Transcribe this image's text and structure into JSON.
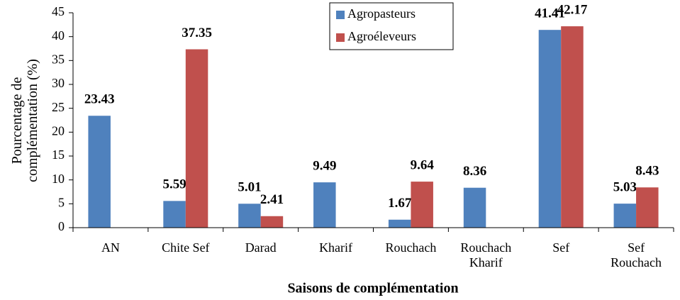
{
  "chart_data": {
    "type": "bar",
    "x_label": "Saisons de complémentation",
    "y_label": "Pourcentage de\ncomplémentation (%)",
    "categories": [
      "AN",
      "Chite Sef",
      "Darad",
      "Kharif",
      "Rouchach",
      "Rouchach\nKharif",
      "Sef",
      "Sef\nRouchach"
    ],
    "series": [
      {
        "name": "Agropasteurs",
        "color": "#4f81bd",
        "values": [
          23.43,
          5.59,
          5.01,
          9.49,
          1.67,
          8.36,
          41.41,
          5.03
        ]
      },
      {
        "name": "Agroéleveurs",
        "color": "#c0504d",
        "values": [
          null,
          37.35,
          2.41,
          null,
          9.64,
          null,
          42.17,
          8.43
        ]
      }
    ],
    "ylim": [
      0,
      45
    ],
    "yticks": [
      0,
      5,
      10,
      15,
      20,
      25,
      30,
      35,
      40,
      45
    ],
    "grid": false,
    "legend": "top"
  }
}
